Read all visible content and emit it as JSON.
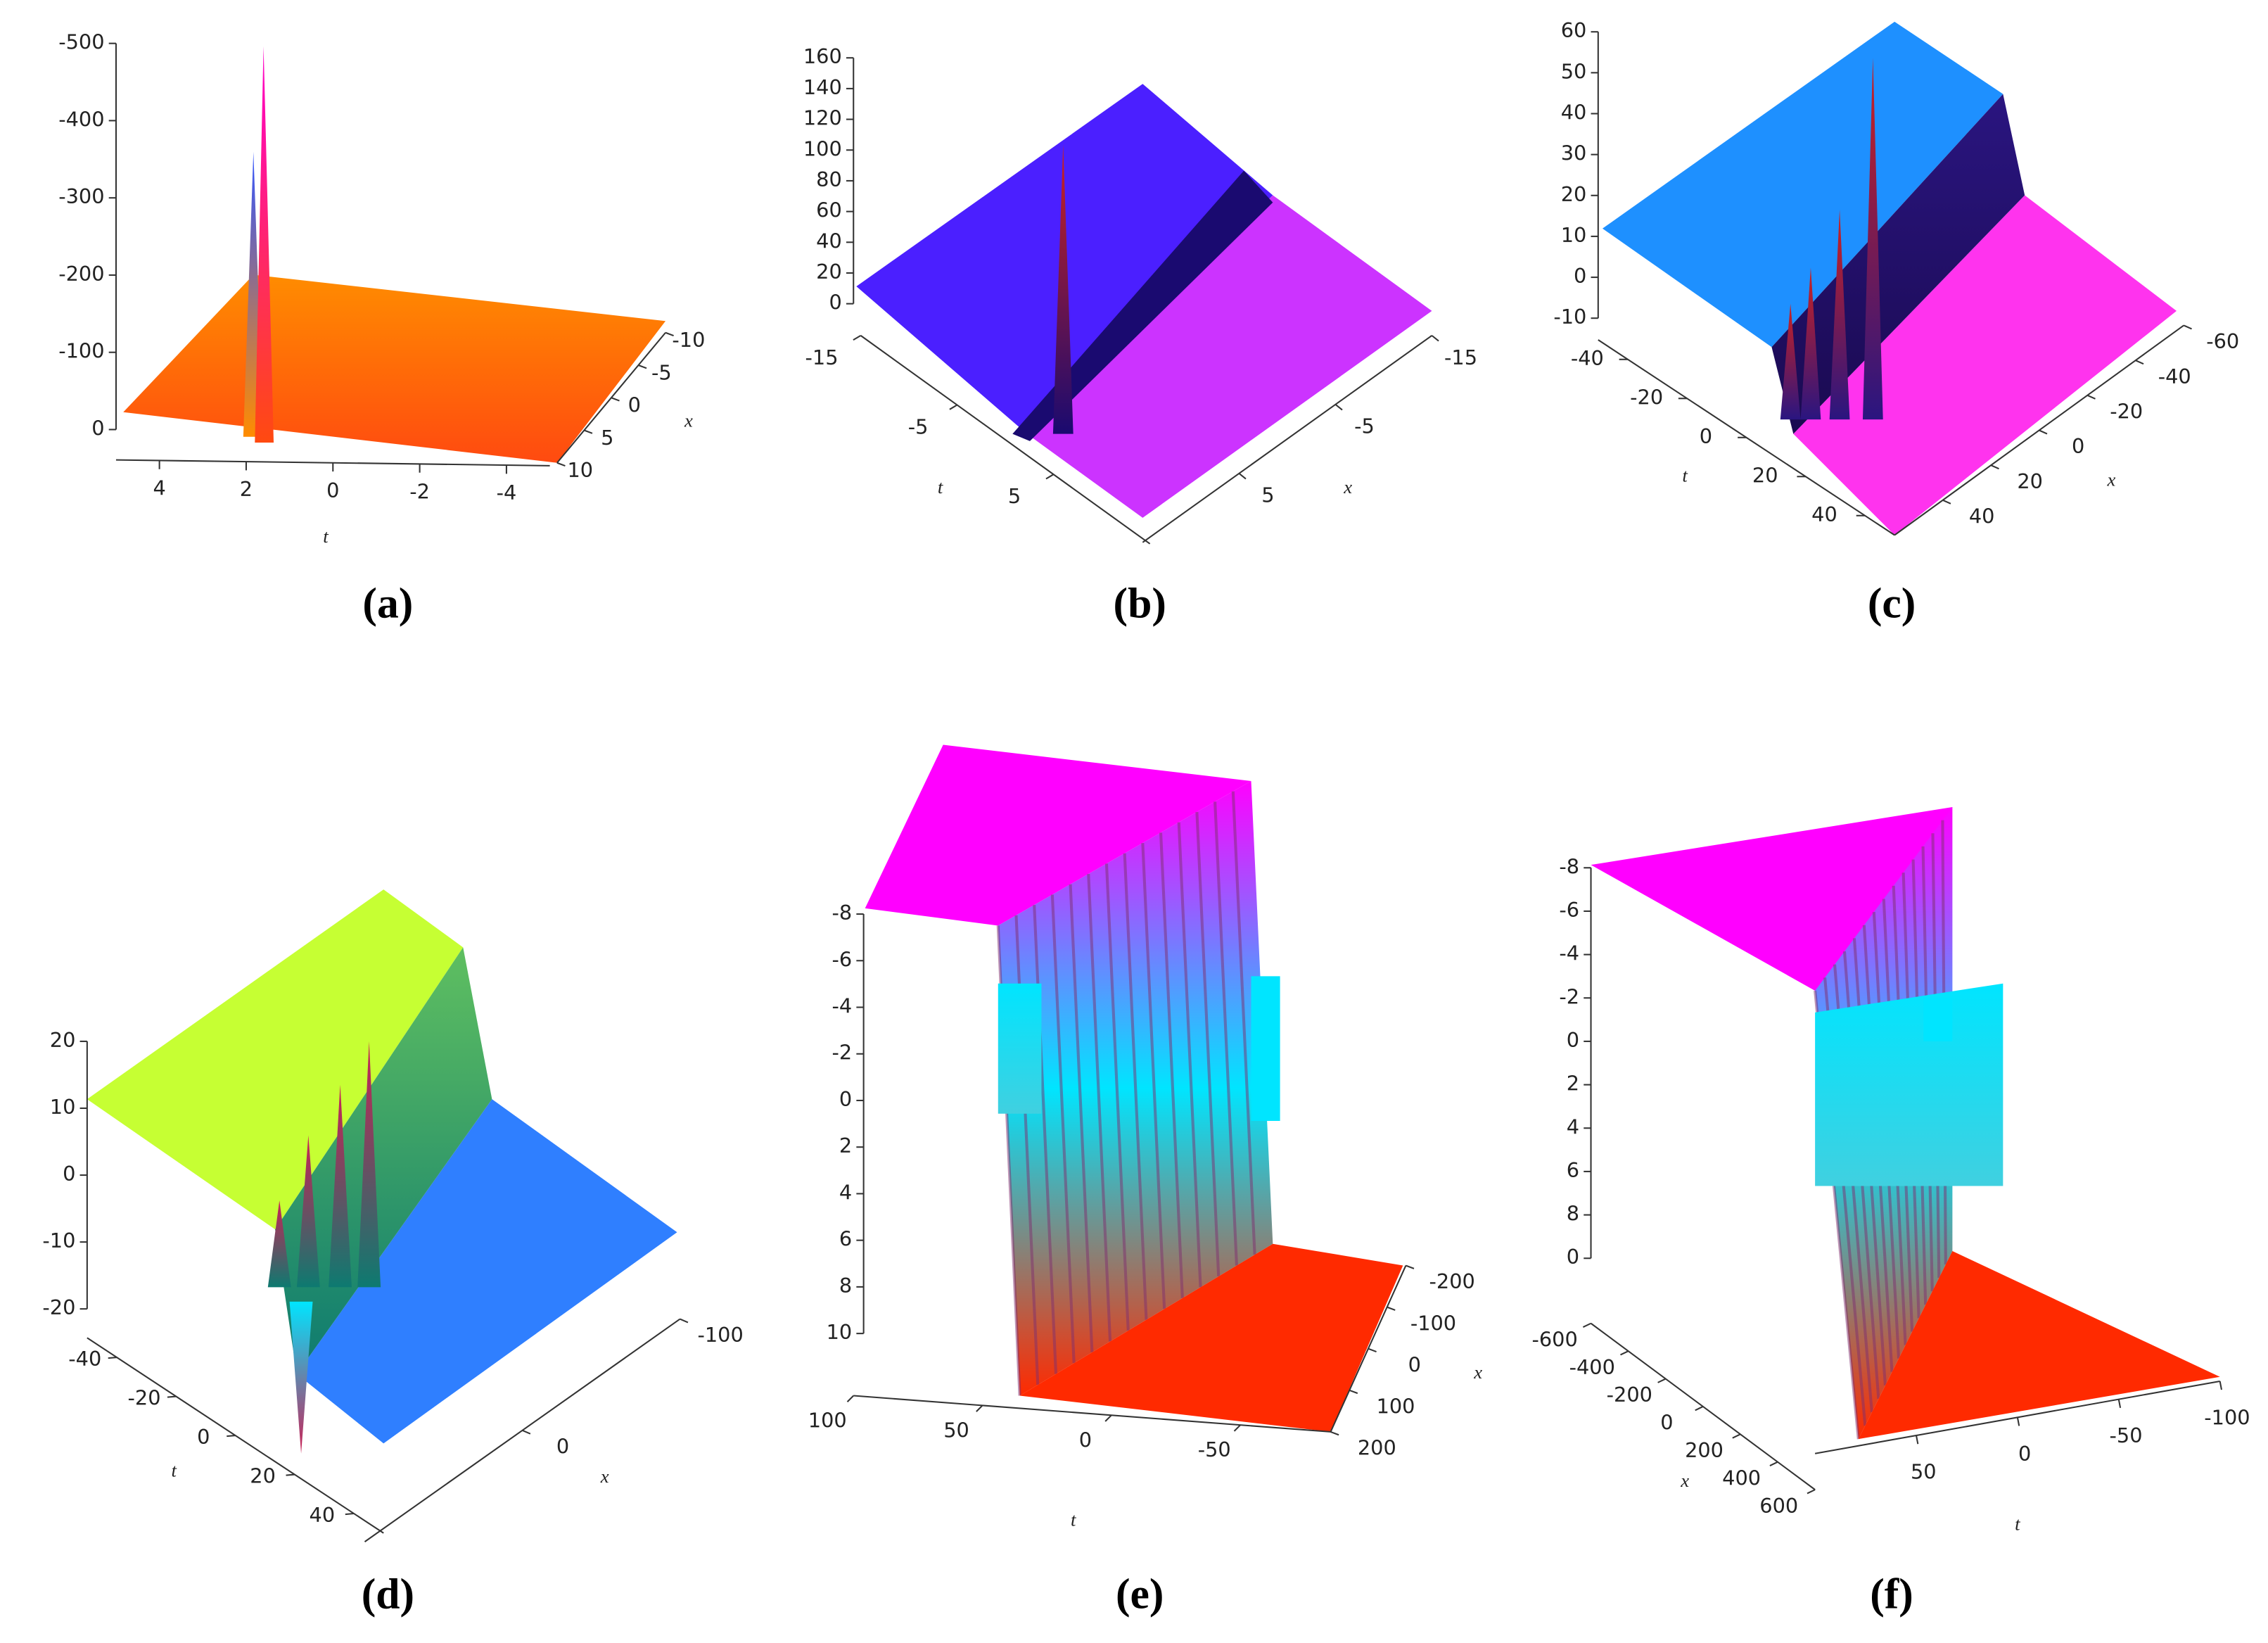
{
  "chart_data": [
    {
      "type": "surface3d",
      "caption": "(a)",
      "zlim": [
        0,
        -500
      ],
      "zticks": [
        -500,
        -400,
        -300,
        -200,
        -100,
        0
      ],
      "tlim": [
        5,
        -5
      ],
      "tticks": [
        4,
        2,
        0,
        -2,
        -4
      ],
      "xlim": [
        10,
        -10
      ],
      "xticks": [
        -10,
        -5,
        0,
        5,
        10
      ],
      "tlabel": "t",
      "xlabel": "x",
      "colors": [
        "#ff8c00",
        "#ff4a10",
        "#ff00cc",
        "#3355ff"
      ]
    },
    {
      "type": "surface3d",
      "caption": "(b)",
      "zlim": [
        0,
        160
      ],
      "zticks": [
        160,
        140,
        120,
        100,
        80,
        60,
        40,
        20,
        0
      ],
      "tlim": [
        -15,
        15
      ],
      "tticks": [
        -15,
        -5,
        5
      ],
      "xlim": [
        15,
        -15
      ],
      "xticks": [
        -15,
        -5,
        5
      ],
      "tlabel": "t",
      "xlabel": "x",
      "colors": [
        "#4b1fff",
        "#cc33ff",
        "#1a0a70",
        "#cc2222"
      ]
    },
    {
      "type": "surface3d",
      "caption": "(c)",
      "zlim": [
        -10,
        60
      ],
      "zticks": [
        60,
        50,
        40,
        30,
        20,
        10,
        0,
        -10
      ],
      "tlim": [
        -50,
        50
      ],
      "tticks": [
        -40,
        -20,
        0,
        20,
        40
      ],
      "xlim": [
        60,
        -60
      ],
      "xticks": [
        -60,
        -40,
        -20,
        0,
        20,
        40
      ],
      "tlabel": "t",
      "xlabel": "x",
      "colors": [
        "#1e90ff",
        "#ff33ee",
        "#2a1580",
        "#cc2222"
      ]
    },
    {
      "type": "surface3d",
      "caption": "(d)",
      "zlim": [
        -20,
        20
      ],
      "zticks": [
        20,
        10,
        0,
        -10,
        -20
      ],
      "tlim": [
        -50,
        50
      ],
      "tticks": [
        -40,
        -20,
        0,
        20,
        40
      ],
      "xlim": [
        100,
        -100
      ],
      "xticks": [
        0,
        -100
      ],
      "tlabel": "t",
      "xlabel": "x",
      "colors": [
        "#c6ff33",
        "#2f7fff",
        "#0d7a70",
        "#cc2255"
      ]
    },
    {
      "type": "surface3d",
      "caption": "(e)",
      "zlim": [
        -8,
        10
      ],
      "zticks": [
        -8,
        -6,
        -4,
        -2,
        0,
        2,
        4,
        6,
        8,
        10
      ],
      "tlim": [
        100,
        -85
      ],
      "tticks": [
        100,
        50,
        0,
        -50
      ],
      "xlim": [
        200,
        -200
      ],
      "xticks": [
        -200,
        -100,
        0,
        100,
        200
      ],
      "tlabel": "t",
      "xlabel": "x",
      "colors": [
        "#ff00ff",
        "#ff2a00",
        "#00e5ff",
        "#803070"
      ]
    },
    {
      "type": "surface3d",
      "caption": "(f)",
      "zlim": [
        -8,
        10
      ],
      "zticks": [
        -8,
        -6,
        -4,
        -2,
        0,
        2,
        4,
        6,
        8,
        {
          "value": 10,
          "label": "0"
        }
      ],
      "tlim": [
        100,
        -100
      ],
      "tticks": [
        50,
        0,
        -50,
        -100
      ],
      "xlim": [
        -600,
        600
      ],
      "xticks": [
        -600,
        -400,
        -200,
        0,
        200,
        400,
        600
      ],
      "tlabel": "t",
      "xlabel": "x",
      "colors": [
        "#ff00ff",
        "#ff2a00",
        "#00e5ff",
        "#803070"
      ]
    }
  ]
}
